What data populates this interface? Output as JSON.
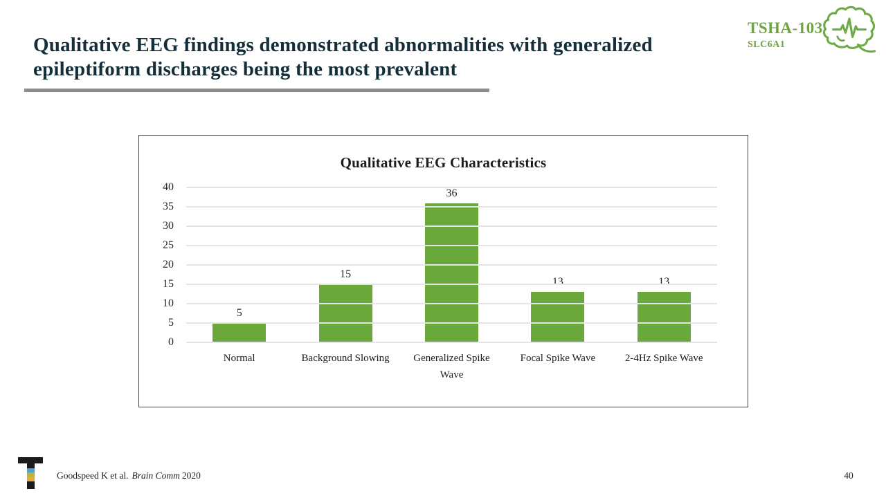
{
  "slide": {
    "title_lines": [
      "Qualitative EEG findings demonstrated abnormalities with generalized",
      "epileptiform discharges being the most prevalent"
    ]
  },
  "header_badge": {
    "program_code": "TSHA-103",
    "gene": "SLC6A1"
  },
  "footer": {
    "citation": {
      "authors": "Goodspeed K et al.",
      "journal": "Brain Comm",
      "year": "2020"
    },
    "page_number": "40"
  },
  "colors": {
    "bar_green": "#6ba83c",
    "logo_green": "#6cab45",
    "title_dark_teal": "#142f39",
    "gridline_gray": "#e5e5e5",
    "rule_gray": "#8c8c8c",
    "t_logo_black": "#1b1b1b",
    "t_logo_blue": "#49a5d8",
    "t_logo_olive": "#b9b23c",
    "t_logo_gold": "#e5ab3a"
  },
  "chart_data": {
    "type": "bar",
    "title": "Qualitative EEG Characteristics",
    "categories": [
      "Normal",
      "Background Slowing",
      "Generalized Spike Wave",
      "Focal Spike Wave",
      "2-4Hz Spike Wave"
    ],
    "values": [
      5,
      15,
      36,
      13,
      13
    ],
    "xlabel": "",
    "ylabel": "",
    "ylim": [
      0,
      40
    ],
    "ytick_step": 5,
    "grid": true,
    "legend": "none",
    "bar_color": "#6ba83c"
  }
}
